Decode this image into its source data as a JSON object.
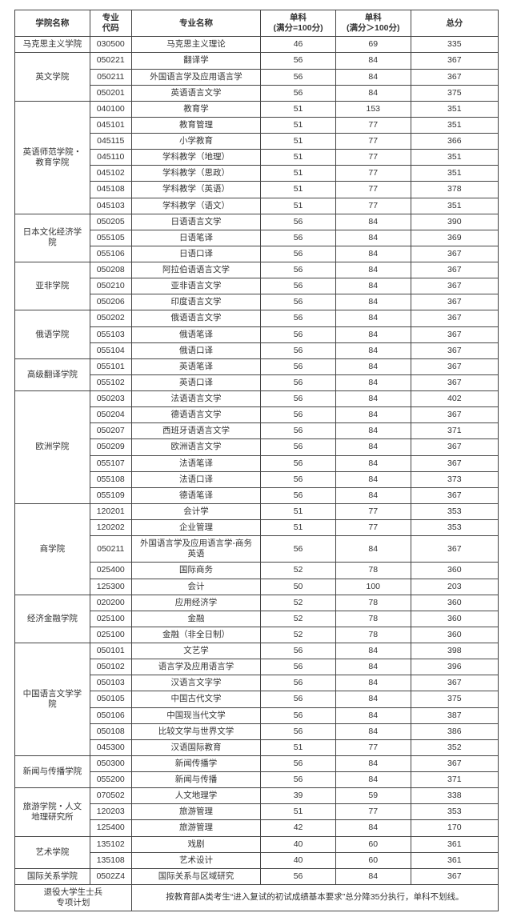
{
  "columns": {
    "c0": "学院名称",
    "c1": "专业\n代码",
    "c2": "专业名称",
    "c3": "单科\n(满分=100分)",
    "c4": "单科\n(满分＞100分)",
    "c5": "总分"
  },
  "schools": [
    {
      "name": "马克思主义学院",
      "rows": [
        [
          "030500",
          "马克思主义理论",
          "46",
          "69",
          "335"
        ]
      ]
    },
    {
      "name": "英文学院",
      "rows": [
        [
          "050221",
          "翻译学",
          "56",
          "84",
          "367"
        ],
        [
          "050211",
          "外国语言学及应用语言学",
          "56",
          "84",
          "367"
        ],
        [
          "050201",
          "英语语言文学",
          "56",
          "84",
          "375"
        ]
      ]
    },
    {
      "name": "英语师范学院・\n教育学院",
      "rows": [
        [
          "040100",
          "教育学",
          "51",
          "153",
          "351"
        ],
        [
          "045101",
          "教育管理",
          "51",
          "77",
          "351"
        ],
        [
          "045115",
          "小学教育",
          "51",
          "77",
          "366"
        ],
        [
          "045110",
          "学科教学（地理）",
          "51",
          "77",
          "351"
        ],
        [
          "045102",
          "学科教学（思政）",
          "51",
          "77",
          "351"
        ],
        [
          "045108",
          "学科教学（英语）",
          "51",
          "77",
          "378"
        ],
        [
          "045103",
          "学科教学（语文）",
          "51",
          "77",
          "351"
        ]
      ]
    },
    {
      "name": "日本文化经济学\n院",
      "rows": [
        [
          "050205",
          "日语语言文学",
          "56",
          "84",
          "390"
        ],
        [
          "055105",
          "日语笔译",
          "56",
          "84",
          "369"
        ],
        [
          "055106",
          "日语口译",
          "56",
          "84",
          "367"
        ]
      ]
    },
    {
      "name": "亚非学院",
      "rows": [
        [
          "050208",
          "阿拉伯语语言文学",
          "56",
          "84",
          "367"
        ],
        [
          "050210",
          "亚非语言文学",
          "56",
          "84",
          "367"
        ],
        [
          "050206",
          "印度语言文学",
          "56",
          "84",
          "367"
        ]
      ]
    },
    {
      "name": "俄语学院",
      "rows": [
        [
          "050202",
          "俄语语言文学",
          "56",
          "84",
          "367"
        ],
        [
          "055103",
          "俄语笔译",
          "56",
          "84",
          "367"
        ],
        [
          "055104",
          "俄语口译",
          "56",
          "84",
          "367"
        ]
      ]
    },
    {
      "name": "高级翻译学院",
      "rows": [
        [
          "055101",
          "英语笔译",
          "56",
          "84",
          "367"
        ],
        [
          "055102",
          "英语口译",
          "56",
          "84",
          "367"
        ]
      ]
    },
    {
      "name": "欧洲学院",
      "rows": [
        [
          "050203",
          "法语语言文学",
          "56",
          "84",
          "402"
        ],
        [
          "050204",
          "德语语言文学",
          "56",
          "84",
          "367"
        ],
        [
          "050207",
          "西班牙语语言文学",
          "56",
          "84",
          "371"
        ],
        [
          "050209",
          "欧洲语言文学",
          "56",
          "84",
          "367"
        ],
        [
          "055107",
          "法语笔译",
          "56",
          "84",
          "367"
        ],
        [
          "055108",
          "法语口译",
          "56",
          "84",
          "373"
        ],
        [
          "055109",
          "德语笔译",
          "56",
          "84",
          "367"
        ]
      ]
    },
    {
      "name": "商学院",
      "rows": [
        [
          "120201",
          "会计学",
          "51",
          "77",
          "353"
        ],
        [
          "120202",
          "企业管理",
          "51",
          "77",
          "353"
        ],
        [
          "050211",
          "外国语言学及应用语言学-商务\n英语",
          "56",
          "84",
          "367"
        ],
        [
          "025400",
          "国际商务",
          "52",
          "78",
          "360"
        ],
        [
          "125300",
          "会计",
          "50",
          "100",
          "203"
        ]
      ]
    },
    {
      "name": "经济金融学院",
      "rows": [
        [
          "020200",
          "应用经济学",
          "52",
          "78",
          "360"
        ],
        [
          "025100",
          "金融",
          "52",
          "78",
          "360"
        ],
        [
          "025100",
          "金融（非全日制）",
          "52",
          "78",
          "360"
        ]
      ]
    },
    {
      "name": "中国语言文学学\n院",
      "rows": [
        [
          "050101",
          "文艺学",
          "56",
          "84",
          "398"
        ],
        [
          "050102",
          "语言学及应用语言学",
          "56",
          "84",
          "396"
        ],
        [
          "050103",
          "汉语言文字学",
          "56",
          "84",
          "367"
        ],
        [
          "050105",
          "中国古代文学",
          "56",
          "84",
          "375"
        ],
        [
          "050106",
          "中国现当代文学",
          "56",
          "84",
          "387"
        ],
        [
          "050108",
          "比较文学与世界文学",
          "56",
          "84",
          "386"
        ],
        [
          "045300",
          "汉语国际教育",
          "51",
          "77",
          "352"
        ]
      ]
    },
    {
      "name": "新闻与传播学院",
      "rows": [
        [
          "050300",
          "新闻传播学",
          "56",
          "84",
          "367"
        ],
        [
          "055200",
          "新闻与传播",
          "56",
          "84",
          "371"
        ]
      ]
    },
    {
      "name": "旅游学院・人文\n地理研究所",
      "rows": [
        [
          "070502",
          "人文地理学",
          "39",
          "59",
          "338"
        ],
        [
          "120203",
          "旅游管理",
          "51",
          "77",
          "353"
        ],
        [
          "125400",
          "旅游管理",
          "42",
          "84",
          "170"
        ]
      ]
    },
    {
      "name": "艺术学院",
      "rows": [
        [
          "135102",
          "戏剧",
          "40",
          "60",
          "361"
        ],
        [
          "135108",
          "艺术设计",
          "40",
          "60",
          "361"
        ]
      ]
    },
    {
      "name": "国际关系学院",
      "rows": [
        [
          "0502Z4",
          "国际关系与区域研究",
          "56",
          "84",
          "367"
        ]
      ]
    }
  ],
  "footer": {
    "label": "退役大学生士兵\n专项计划",
    "note": "按教育部A类考生“进入复试的初试成绩基本要求”总分降35分执行，单科不划线。"
  }
}
